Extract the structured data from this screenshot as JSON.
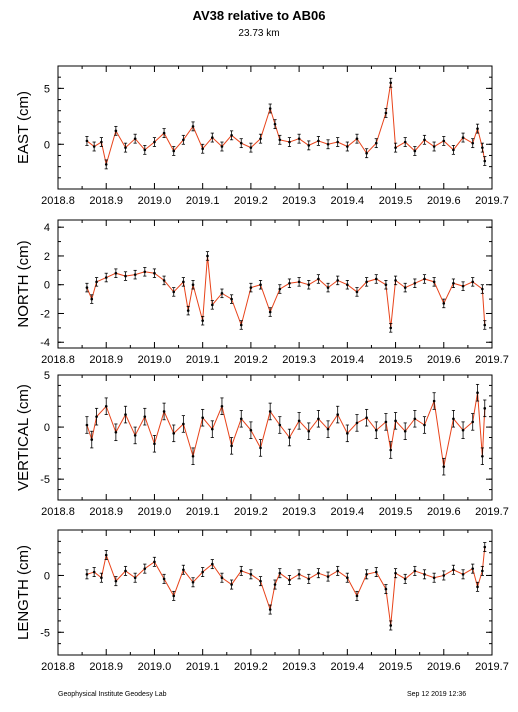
{
  "header": {
    "title": "AV38 relative to AB06",
    "subtitle": "23.73 km"
  },
  "footer": {
    "left": "Geophysical Institute Geodesy Lab",
    "right": "Sep 12 2019 12:36"
  },
  "colors": {
    "point": "#000000",
    "connector": "#e8431a",
    "axis": "#000000"
  },
  "chart_data": [
    {
      "type": "scatter",
      "ylabel": "EAST (cm)",
      "xlim": [
        2018.8,
        2019.7
      ],
      "ylim": [
        -4,
        7
      ],
      "xticks": [
        2018.8,
        2018.9,
        2019.0,
        2019.1,
        2019.2,
        2019.3,
        2019.4,
        2019.5,
        2019.6,
        2019.7
      ],
      "xtick_labels": [
        "2018.8",
        "2018.9",
        "2019.0",
        "2019.1",
        "2019.2",
        "2019.3",
        "2019.4",
        "2019.5",
        "2019.6",
        "2019.7"
      ],
      "yticks": [
        5,
        0
      ],
      "ytick_labels": [
        "5",
        "0"
      ],
      "error_cm": 0.4,
      "series": [
        {
          "x": [
            2018.86,
            2018.875,
            2018.89,
            2018.9,
            2018.92,
            2018.94,
            2018.96,
            2018.98,
            2019.0,
            2019.02,
            2019.04,
            2019.06,
            2019.08,
            2019.1,
            2019.12,
            2019.14,
            2019.16,
            2019.18,
            2019.2,
            2019.22,
            2019.24,
            2019.25,
            2019.26,
            2019.28,
            2019.3,
            2019.32,
            2019.34,
            2019.36,
            2019.38,
            2019.4,
            2019.42,
            2019.44,
            2019.46,
            2019.48,
            2019.49,
            2019.5,
            2019.52,
            2019.54,
            2019.56,
            2019.58,
            2019.6,
            2019.62,
            2019.64,
            2019.66,
            2019.67,
            2019.68,
            2019.685
          ],
          "y": [
            0.3,
            -0.2,
            0.2,
            -1.8,
            1.2,
            -0.3,
            0.5,
            -0.5,
            0.2,
            1.0,
            -0.6,
            0.4,
            1.6,
            -0.4,
            0.6,
            -0.2,
            0.8,
            0.1,
            -0.3,
            0.5,
            3.2,
            1.8,
            0.4,
            0.2,
            0.5,
            -0.1,
            0.3,
            0.0,
            0.2,
            -0.2,
            0.5,
            -0.8,
            0.1,
            2.8,
            5.5,
            -0.3,
            0.2,
            -0.6,
            0.4,
            -0.2,
            0.3,
            -0.5,
            0.6,
            0.1,
            1.4,
            -0.3,
            -1.5
          ]
        }
      ]
    },
    {
      "type": "scatter",
      "ylabel": "NORTH (cm)",
      "xlim": [
        2018.8,
        2019.7
      ],
      "ylim": [
        -4.4,
        4.5
      ],
      "xticks": [
        2018.8,
        2018.9,
        2019.0,
        2019.1,
        2019.2,
        2019.3,
        2019.4,
        2019.5,
        2019.6,
        2019.7
      ],
      "xtick_labels": [
        "2018.8",
        "2018.9",
        "2019.0",
        "2019.1",
        "2019.2",
        "2019.3",
        "2019.4",
        "2019.5",
        "2019.6",
        "2019.7"
      ],
      "yticks": [
        4,
        2,
        0,
        -2,
        -4
      ],
      "ytick_labels": [
        "4",
        "2",
        "0",
        "-2",
        "-4"
      ],
      "error_cm": 0.3,
      "series": [
        {
          "x": [
            2018.86,
            2018.87,
            2018.88,
            2018.9,
            2018.92,
            2018.94,
            2018.96,
            2018.98,
            2019.0,
            2019.02,
            2019.04,
            2019.06,
            2019.07,
            2019.08,
            2019.1,
            2019.11,
            2019.12,
            2019.14,
            2019.16,
            2019.18,
            2019.2,
            2019.22,
            2019.24,
            2019.26,
            2019.28,
            2019.3,
            2019.32,
            2019.34,
            2019.36,
            2019.38,
            2019.4,
            2019.42,
            2019.44,
            2019.46,
            2019.48,
            2019.49,
            2019.5,
            2019.52,
            2019.54,
            2019.56,
            2019.58,
            2019.6,
            2019.62,
            2019.64,
            2019.66,
            2019.68,
            2019.685
          ],
          "y": [
            -0.2,
            -1.0,
            0.2,
            0.5,
            0.8,
            0.6,
            0.7,
            0.9,
            0.8,
            0.3,
            -0.5,
            0.2,
            -1.8,
            0.0,
            -2.5,
            2.0,
            -1.4,
            -0.6,
            -1.0,
            -2.8,
            -0.2,
            0.0,
            -1.9,
            -0.3,
            0.1,
            0.2,
            0.0,
            0.4,
            -0.2,
            0.3,
            0.0,
            -0.5,
            0.2,
            0.4,
            0.0,
            -3.0,
            0.3,
            -0.2,
            0.1,
            0.4,
            0.2,
            -1.3,
            0.1,
            -0.1,
            0.2,
            -0.3,
            -2.8
          ]
        }
      ]
    },
    {
      "type": "scatter",
      "ylabel": "VERTICAL (cm)",
      "xlim": [
        2018.8,
        2019.7
      ],
      "ylim": [
        -7,
        5
      ],
      "xticks": [
        2018.8,
        2018.9,
        2019.0,
        2019.1,
        2019.2,
        2019.3,
        2019.4,
        2019.5,
        2019.6,
        2019.7
      ],
      "xtick_labels": [
        "2018.8",
        "2018.9",
        "2019.0",
        "2019.1",
        "2019.2",
        "2019.3",
        "2019.4",
        "2019.5",
        "2019.6",
        "2019.7"
      ],
      "yticks": [
        5,
        0,
        -5
      ],
      "ytick_labels": [
        "5",
        "0",
        "-5"
      ],
      "error_cm": 0.8,
      "series": [
        {
          "x": [
            2018.86,
            2018.87,
            2018.88,
            2018.9,
            2018.92,
            2018.94,
            2018.96,
            2018.98,
            2019.0,
            2019.02,
            2019.04,
            2019.06,
            2019.08,
            2019.1,
            2019.12,
            2019.14,
            2019.16,
            2019.18,
            2019.2,
            2019.22,
            2019.24,
            2019.26,
            2019.28,
            2019.3,
            2019.32,
            2019.34,
            2019.36,
            2019.38,
            2019.4,
            2019.42,
            2019.44,
            2019.46,
            2019.48,
            2019.49,
            2019.5,
            2019.52,
            2019.54,
            2019.56,
            2019.58,
            2019.6,
            2019.62,
            2019.64,
            2019.66,
            2019.67,
            2019.68,
            2019.685
          ],
          "y": [
            0.2,
            -1.2,
            1.0,
            2.0,
            -0.5,
            1.2,
            -0.8,
            1.0,
            -1.6,
            1.5,
            -0.6,
            0.3,
            -2.8,
            0.9,
            -0.2,
            2.0,
            -1.8,
            0.8,
            -0.3,
            -2.0,
            1.5,
            0.2,
            -1.0,
            0.6,
            -0.4,
            0.8,
            -0.2,
            1.2,
            -0.6,
            0.4,
            0.9,
            -0.3,
            0.5,
            -2.2,
            0.6,
            -0.4,
            0.8,
            0.2,
            2.5,
            -3.8,
            0.8,
            -0.3,
            0.5,
            3.3,
            -2.8,
            1.8
          ]
        }
      ]
    },
    {
      "type": "scatter",
      "ylabel": "LENGTH (cm)",
      "xlim": [
        2018.8,
        2019.7
      ],
      "ylim": [
        -7,
        4
      ],
      "xticks": [
        2018.8,
        2018.9,
        2019.0,
        2019.1,
        2019.2,
        2019.3,
        2019.4,
        2019.5,
        2019.6,
        2019.7
      ],
      "xtick_labels": [
        "2018.8",
        "2018.9",
        "2019.0",
        "2019.1",
        "2019.2",
        "2019.3",
        "2019.4",
        "2019.5",
        "2019.6",
        "2019.7"
      ],
      "yticks": [
        0,
        -5
      ],
      "ytick_labels": [
        "0",
        "-5"
      ],
      "error_cm": 0.4,
      "series": [
        {
          "x": [
            2018.86,
            2018.875,
            2018.89,
            2018.9,
            2018.92,
            2018.94,
            2018.96,
            2018.98,
            2019.0,
            2019.02,
            2019.04,
            2019.06,
            2019.08,
            2019.1,
            2019.12,
            2019.14,
            2019.16,
            2019.18,
            2019.2,
            2019.22,
            2019.24,
            2019.25,
            2019.26,
            2019.28,
            2019.3,
            2019.32,
            2019.34,
            2019.36,
            2019.38,
            2019.4,
            2019.42,
            2019.44,
            2019.46,
            2019.48,
            2019.49,
            2019.5,
            2019.52,
            2019.54,
            2019.56,
            2019.58,
            2019.6,
            2019.62,
            2019.64,
            2019.66,
            2019.67,
            2019.68,
            2019.685
          ],
          "y": [
            0.1,
            0.3,
            -0.2,
            1.8,
            -0.5,
            0.4,
            -0.2,
            0.6,
            1.2,
            -0.3,
            -1.8,
            0.5,
            -0.6,
            0.3,
            1.0,
            -0.2,
            -0.8,
            0.4,
            0.1,
            -0.5,
            -3.0,
            -0.8,
            0.2,
            -0.4,
            0.1,
            -0.3,
            0.2,
            -0.1,
            0.4,
            -0.2,
            -1.8,
            0.1,
            0.3,
            -1.2,
            -4.4,
            0.2,
            -0.3,
            0.4,
            0.1,
            -0.2,
            0.0,
            0.5,
            0.1,
            0.6,
            -1.0,
            0.4,
            2.5
          ]
        }
      ]
    }
  ]
}
